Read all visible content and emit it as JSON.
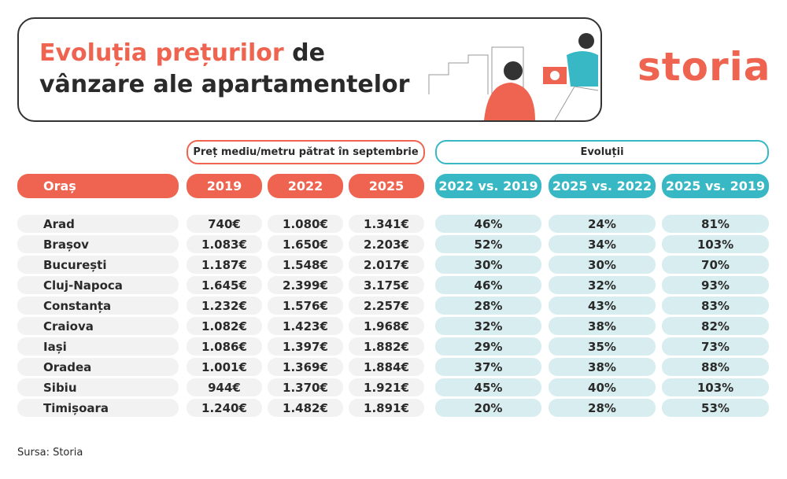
{
  "header": {
    "title_accent": "Evoluția prețurilor",
    "title_rest": "de",
    "title_line2": "vânzare ale apartamentelor",
    "logo": "storia"
  },
  "table": {
    "group_headers": [
      "Preț mediu/metru pătrat în septembrie",
      "Evoluții"
    ],
    "columns": [
      "Oraș",
      "2019",
      "2022",
      "2025",
      "2022 vs. 2019",
      "2025 vs. 2022",
      "2025 vs. 2019"
    ],
    "rows": [
      [
        "Arad",
        "740€",
        "1.080€",
        "1.341€",
        "46%",
        "24%",
        "81%"
      ],
      [
        "Brașov",
        "1.083€",
        "1.650€",
        "2.203€",
        "52%",
        "34%",
        "103%"
      ],
      [
        "București",
        "1.187€",
        "1.548€",
        "2.017€",
        "30%",
        "30%",
        "70%"
      ],
      [
        "Cluj-Napoca",
        "1.645€",
        "2.399€",
        "3.175€",
        "46%",
        "32%",
        "93%"
      ],
      [
        "Constanța",
        "1.232€",
        "1.576€",
        "2.257€",
        "28%",
        "43%",
        "83%"
      ],
      [
        "Craiova",
        "1.082€",
        "1.423€",
        "1.968€",
        "32%",
        "38%",
        "82%"
      ],
      [
        "Iași",
        "1.086€",
        "1.397€",
        "1.882€",
        "29%",
        "35%",
        "73%"
      ],
      [
        "Oradea",
        "1.001€",
        "1.369€",
        "1.884€",
        "37%",
        "38%",
        "88%"
      ],
      [
        "Sibiu",
        "944€",
        "1.370€",
        "1.921€",
        "45%",
        "40%",
        "103%"
      ],
      [
        "Timișoara",
        "1.240€",
        "1.482€",
        "1.891€",
        "20%",
        "28%",
        "53%"
      ]
    ]
  },
  "footer": {
    "source": "Sursa: Storia"
  }
}
